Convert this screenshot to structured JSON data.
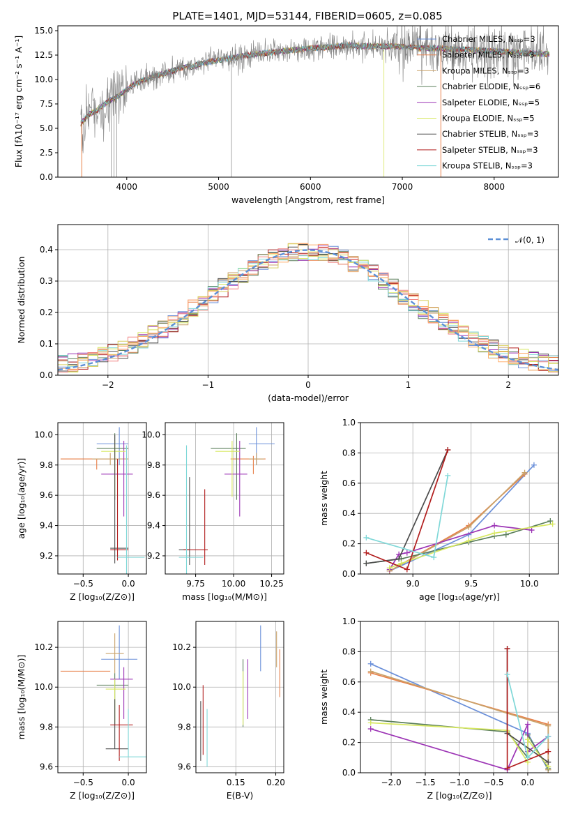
{
  "colors": {
    "grid": "#b0b0b0",
    "series": [
      "#6a8fd9",
      "#e8804a",
      "#c9a26a",
      "#5b7f5b",
      "#9c34b5",
      "#d7e860",
      "#4d4d4d",
      "#b21e1e",
      "#80d8d8"
    ],
    "hist_extra": [
      "#f08080",
      "#d9d060",
      "#ffb070"
    ]
  },
  "chart_data": [
    {
      "id": "spectrum",
      "type": "line",
      "title": "PLATE=1401, MJD=53144, FIBERID=0605, z=0.085",
      "xlabel": "wavelength [Angstrom, rest frame]",
      "ylabel": "Flux [fλ10⁻¹⁷ erg cm⁻² s⁻¹ A⁻¹]",
      "xlim": [
        3250,
        8700
      ],
      "ylim": [
        0,
        15.5
      ],
      "xticks": [
        4000,
        5000,
        6000,
        7000,
        8000
      ],
      "yticks": [
        0.0,
        2.5,
        5.0,
        7.5,
        10.0,
        12.5,
        15.0
      ],
      "grid": false,
      "legend_position": "right",
      "legend": [
        "Chabrier MILES, Nₛₛₚ=3",
        "Salpeter MILES, Nₛₛₚ=3",
        "Kroupa MILES, Nₛₛₚ=3",
        "Chabrier ELODIE, Nₛₛₚ=6",
        "Salpeter ELODIE, Nₛₛₚ=5",
        "Kroupa ELODIE, Nₛₛₚ=5",
        "Chabrier STELIB, Nₛₛₚ=3",
        "Salpeter STELIB, Nₛₛₚ=3",
        "Kroupa STELIB, Nₛₛₚ=3"
      ],
      "continuum_x": [
        3500,
        3600,
        3700,
        3800,
        3900,
        4000,
        4100,
        4200,
        4300,
        4400,
        4500,
        4600,
        4700,
        4800,
        4900,
        5000,
        5200,
        5400,
        5600,
        5800,
        6000,
        6200,
        6400,
        6600,
        6800,
        7000,
        7200,
        7400,
        7600,
        7800,
        8000,
        8200,
        8400,
        8600
      ],
      "continuum_y": [
        5.5,
        6.5,
        7.0,
        7.8,
        8.2,
        9.0,
        9.6,
        10.0,
        10.3,
        10.6,
        10.9,
        11.2,
        11.3,
        11.6,
        11.8,
        12.0,
        12.3,
        12.6,
        12.8,
        13.0,
        13.2,
        13.3,
        13.5,
        13.4,
        13.4,
        13.4,
        13.2,
        13.2,
        13.1,
        13.0,
        12.9,
        12.8,
        12.7,
        12.6
      ],
      "data_noise_amp": 2.2
    },
    {
      "id": "residuals",
      "type": "bar",
      "xlabel": "(data-model)/error",
      "ylabel": "Normed distribution",
      "xlim": [
        -2.5,
        2.5
      ],
      "ylim": [
        0,
        0.48
      ],
      "xticks": [
        -2,
        -1,
        0,
        1,
        2
      ],
      "yticks": [
        0.0,
        0.1,
        0.2,
        0.3,
        0.4
      ],
      "grid": true,
      "legend_position": "top-right",
      "legend": [
        "𝒩(0, 1)"
      ],
      "bin_width": 0.1
    },
    {
      "id": "age-vs-z",
      "type": "scatter",
      "xlabel": "Z [log₁₀(Z/Z⊙)]",
      "ylabel": "age  [log₁₀(age/yr)]",
      "xlim": [
        -0.78,
        0.2
      ],
      "ylim": [
        9.08,
        10.08
      ],
      "xticks": [
        -0.5,
        0.0
      ],
      "yticks": [
        9.2,
        9.4,
        9.6,
        9.8,
        10.0
      ],
      "grid": true,
      "points": [
        {
          "x": -0.1,
          "y": 9.94,
          "xerr": [
            0.25,
            0.1
          ],
          "yerr": [
            0.14,
            0.11
          ]
        },
        {
          "x": -0.35,
          "y": 9.84,
          "xerr": [
            0.4,
            0.25
          ],
          "yerr": [
            0.07,
            0.0
          ]
        },
        {
          "x": -0.2,
          "y": 9.84,
          "xerr": [
            0.2,
            0.2
          ],
          "yerr": [
            0.04,
            0.04
          ]
        },
        {
          "x": -0.15,
          "y": 9.91,
          "xerr": [
            0.2,
            0.15
          ],
          "yerr": [
            0.34,
            0.1
          ]
        },
        {
          "x": -0.05,
          "y": 9.74,
          "xerr": [
            0.25,
            0.1
          ],
          "yerr": [
            0.28,
            0.22
          ]
        },
        {
          "x": -0.15,
          "y": 9.89,
          "xerr": [
            0.15,
            0.12
          ],
          "yerr": [
            0.3,
            0.07
          ]
        },
        {
          "x": -0.15,
          "y": 9.25,
          "xerr": [
            0.05,
            0.15
          ],
          "yerr": [
            0.1,
            0.75
          ]
        },
        {
          "x": -0.12,
          "y": 9.24,
          "xerr": [
            0.08,
            0.12
          ],
          "yerr": [
            0.07,
            0.6
          ]
        },
        {
          "x": -0.02,
          "y": 9.19,
          "xerr": [
            0.1,
            0.2
          ],
          "yerr": [
            0.14,
            0.74
          ]
        }
      ]
    },
    {
      "id": "age-vs-mass",
      "type": "scatter",
      "xlabel": "mass [log₁₀(M/M⊙)]",
      "ylabel": "",
      "xlim": [
        9.55,
        10.33
      ],
      "ylim": [
        9.08,
        10.08
      ],
      "xticks": [
        9.75,
        10.0,
        10.25
      ],
      "yticks": [
        9.2,
        9.4,
        9.6,
        9.8,
        10.0
      ],
      "grid": true,
      "points": [
        {
          "x": 10.15,
          "y": 9.94,
          "xerr": [
            0.05,
            0.12
          ],
          "yerr": [
            0.14,
            0.11
          ]
        },
        {
          "x": 10.13,
          "y": 9.84,
          "xerr": [
            0.15,
            0.08
          ],
          "yerr": [
            0.1,
            0.02
          ]
        },
        {
          "x": 10.15,
          "y": 9.84,
          "xerr": [
            0.05,
            0.05
          ],
          "yerr": [
            0.04,
            0.04
          ]
        },
        {
          "x": 10.02,
          "y": 9.91,
          "xerr": [
            0.17,
            0.06
          ],
          "yerr": [
            0.34,
            0.1
          ]
        },
        {
          "x": 10.04,
          "y": 9.74,
          "xerr": [
            0.1,
            0.05
          ],
          "yerr": [
            0.28,
            0.22
          ]
        },
        {
          "x": 9.99,
          "y": 9.89,
          "xerr": [
            0.11,
            0.05
          ],
          "yerr": [
            0.3,
            0.07
          ]
        },
        {
          "x": 9.71,
          "y": 9.24,
          "xerr": [
            0.07,
            0.0
          ],
          "yerr": [
            0.1,
            0.48
          ]
        },
        {
          "x": 9.81,
          "y": 9.24,
          "xerr": [
            0.14,
            0.02
          ],
          "yerr": [
            0.1,
            0.4
          ]
        },
        {
          "x": 9.69,
          "y": 9.19,
          "xerr": [
            0.05,
            0.11
          ],
          "yerr": [
            0.14,
            0.74
          ]
        }
      ]
    },
    {
      "id": "massweight-vs-age",
      "type": "line",
      "xlabel": "age  [log₁₀(age/yr)]",
      "ylabel": "mass weight",
      "xlim": [
        8.55,
        10.25
      ],
      "ylim": [
        0,
        1.0
      ],
      "xticks": [
        9.0,
        9.5,
        10.0
      ],
      "yticks": [
        0.0,
        0.2,
        0.4,
        0.6,
        0.8,
        1.0
      ],
      "grid": true,
      "series": [
        {
          "x": [
            8.8,
            9.48,
            10.04
          ],
          "y": [
            0.02,
            0.26,
            0.72
          ]
        },
        {
          "x": [
            8.8,
            9.48,
            9.96
          ],
          "y": [
            0.02,
            0.32,
            0.66
          ]
        },
        {
          "x": [
            8.8,
            9.48,
            9.96
          ],
          "y": [
            0.02,
            0.31,
            0.67
          ]
        },
        {
          "x": [
            8.6,
            8.9,
            9.48,
            9.7,
            9.8,
            10.18
          ],
          "y": [
            0.07,
            0.1,
            0.21,
            0.25,
            0.26,
            0.35
          ]
        },
        {
          "x": [
            8.8,
            8.88,
            8.95,
            9.7,
            10.02
          ],
          "y": [
            0.03,
            0.13,
            0.14,
            0.32,
            0.29
          ]
        },
        {
          "x": [
            8.8,
            8.9,
            9.48,
            9.7,
            10.2
          ],
          "y": [
            0.04,
            0.07,
            0.22,
            0.27,
            0.33
          ]
        },
        {
          "x": [
            8.6,
            8.88,
            9.3
          ],
          "y": [
            0.07,
            0.1,
            0.82
          ]
        },
        {
          "x": [
            8.6,
            8.95,
            9.3
          ],
          "y": [
            0.14,
            0.03,
            0.82
          ]
        },
        {
          "x": [
            8.6,
            9.18,
            9.3
          ],
          "y": [
            0.24,
            0.11,
            0.65
          ]
        }
      ]
    },
    {
      "id": "mass-vs-z",
      "type": "scatter",
      "xlabel": "Z [log₁₀(Z/Z⊙)]",
      "ylabel": "mass [log₁₀(M/M⊙)]",
      "xlim": [
        -0.78,
        0.2
      ],
      "ylim": [
        9.57,
        10.33
      ],
      "xticks": [
        -0.5,
        0.0
      ],
      "yticks": [
        9.6,
        9.8,
        10.0,
        10.2
      ],
      "grid": true,
      "points": [
        {
          "x": -0.1,
          "y": 10.14,
          "xerr": [
            0.2,
            0.2
          ],
          "yerr": [
            0.1,
            0.17
          ]
        },
        {
          "x": -0.4,
          "y": 10.08,
          "xerr": [
            0.35,
            0.2
          ],
          "yerr": [
            0.0,
            0.0
          ]
        },
        {
          "x": -0.15,
          "y": 10.17,
          "xerr": [
            0.1,
            0.1
          ],
          "yerr": [
            0.1,
            0.1
          ]
        },
        {
          "x": -0.15,
          "y": 10.01,
          "xerr": [
            0.2,
            0.15
          ],
          "yerr": [
            0.2,
            0.06
          ]
        },
        {
          "x": -0.05,
          "y": 10.04,
          "xerr": [
            0.15,
            0.1
          ],
          "yerr": [
            0.2,
            0.06
          ]
        },
        {
          "x": -0.15,
          "y": 9.99,
          "xerr": [
            0.1,
            0.12
          ],
          "yerr": [
            0.17,
            0.05
          ]
        },
        {
          "x": -0.15,
          "y": 9.69,
          "xerr": [
            0.1,
            0.15
          ],
          "yerr": [
            0.0,
            0.25
          ]
        },
        {
          "x": -0.1,
          "y": 9.81,
          "xerr": [
            0.1,
            0.15
          ],
          "yerr": [
            0.18,
            0.1
          ]
        },
        {
          "x": 0.0,
          "y": 9.65,
          "xerr": [
            0.1,
            0.2
          ],
          "yerr": [
            0.0,
            0.24
          ]
        }
      ]
    },
    {
      "id": "mass-vs-ebv",
      "type": "scatter",
      "xlabel": "E(B-V)",
      "ylabel": "",
      "xlim": [
        0.1,
        0.21
      ],
      "ylim": [
        9.57,
        10.33
      ],
      "xticks": [
        0.15,
        0.2
      ],
      "yticks": [
        9.6,
        9.8,
        10.0,
        10.2
      ],
      "grid": true,
      "points": [
        {
          "x": 0.181,
          "y": 10.2,
          "xerr": [
            0.0,
            0.0
          ],
          "yerr": [
            0.12,
            0.11
          ]
        },
        {
          "x": 0.205,
          "y": 10.08,
          "xerr": [
            0.0,
            0.0
          ],
          "yerr": [
            0.13,
            0.11
          ]
        },
        {
          "x": 0.201,
          "y": 10.2,
          "xerr": [
            0.0,
            0.0
          ],
          "yerr": [
            0.1,
            0.08
          ]
        },
        {
          "x": 0.159,
          "y": 9.98,
          "xerr": [
            0.0,
            0.0
          ],
          "yerr": [
            0.18,
            0.16
          ]
        },
        {
          "x": 0.165,
          "y": 10.0,
          "xerr": [
            0.0,
            0.0
          ],
          "yerr": [
            0.16,
            0.14
          ]
        },
        {
          "x": 0.159,
          "y": 9.96,
          "xerr": [
            0.0,
            0.0
          ],
          "yerr": [
            0.15,
            0.12
          ]
        },
        {
          "x": 0.106,
          "y": 9.78,
          "xerr": [
            0.0,
            0.0
          ],
          "yerr": [
            0.15,
            0.15
          ]
        },
        {
          "x": 0.109,
          "y": 9.83,
          "xerr": [
            0.0,
            0.0
          ],
          "yerr": [
            0.17,
            0.18
          ]
        },
        {
          "x": 0.114,
          "y": 9.75,
          "xerr": [
            0.0,
            0.0
          ],
          "yerr": [
            0.15,
            0.14
          ]
        }
      ]
    },
    {
      "id": "massweight-vs-z",
      "type": "line",
      "xlabel": "Z [log₁₀(Z/Z⊙)]",
      "ylabel": "mass weight",
      "xlim": [
        -2.45,
        0.45
      ],
      "ylim": [
        0,
        1.0
      ],
      "xticks": [
        -2.0,
        -1.5,
        -1.0,
        -0.5,
        0.0
      ],
      "yticks": [
        0.0,
        0.2,
        0.4,
        0.6,
        0.8,
        1.0
      ],
      "grid": true,
      "series": [
        {
          "x": [
            -2.3,
            0.0,
            0.3
          ],
          "y": [
            0.72,
            0.26,
            0.02
          ]
        },
        {
          "x": [
            -2.3,
            0.3,
            0.3
          ],
          "y": [
            0.66,
            0.32,
            0.02
          ]
        },
        {
          "x": [
            -2.3,
            0.3,
            0.3
          ],
          "y": [
            0.67,
            0.31,
            0.02
          ]
        },
        {
          "x": [
            -2.3,
            -0.3,
            0.0,
            0.0,
            0.3
          ],
          "y": [
            0.35,
            0.27,
            0.1,
            0.25,
            0.03
          ]
        },
        {
          "x": [
            -2.3,
            -0.3,
            0.0,
            0.0,
            0.3
          ],
          "y": [
            0.29,
            0.02,
            0.32,
            0.14,
            0.24
          ]
        },
        {
          "x": [
            -2.3,
            -0.3,
            0.0,
            0.0,
            0.3
          ],
          "y": [
            0.33,
            0.28,
            0.07,
            0.22,
            0.04
          ]
        },
        {
          "x": [
            -0.3,
            -0.3,
            0.3
          ],
          "y": [
            0.82,
            0.26,
            0.07
          ]
        },
        {
          "x": [
            -0.3,
            -0.3,
            0.3
          ],
          "y": [
            0.82,
            0.03,
            0.14
          ]
        },
        {
          "x": [
            -0.3,
            0.0,
            0.3
          ],
          "y": [
            0.65,
            0.1,
            0.24
          ]
        }
      ]
    }
  ]
}
